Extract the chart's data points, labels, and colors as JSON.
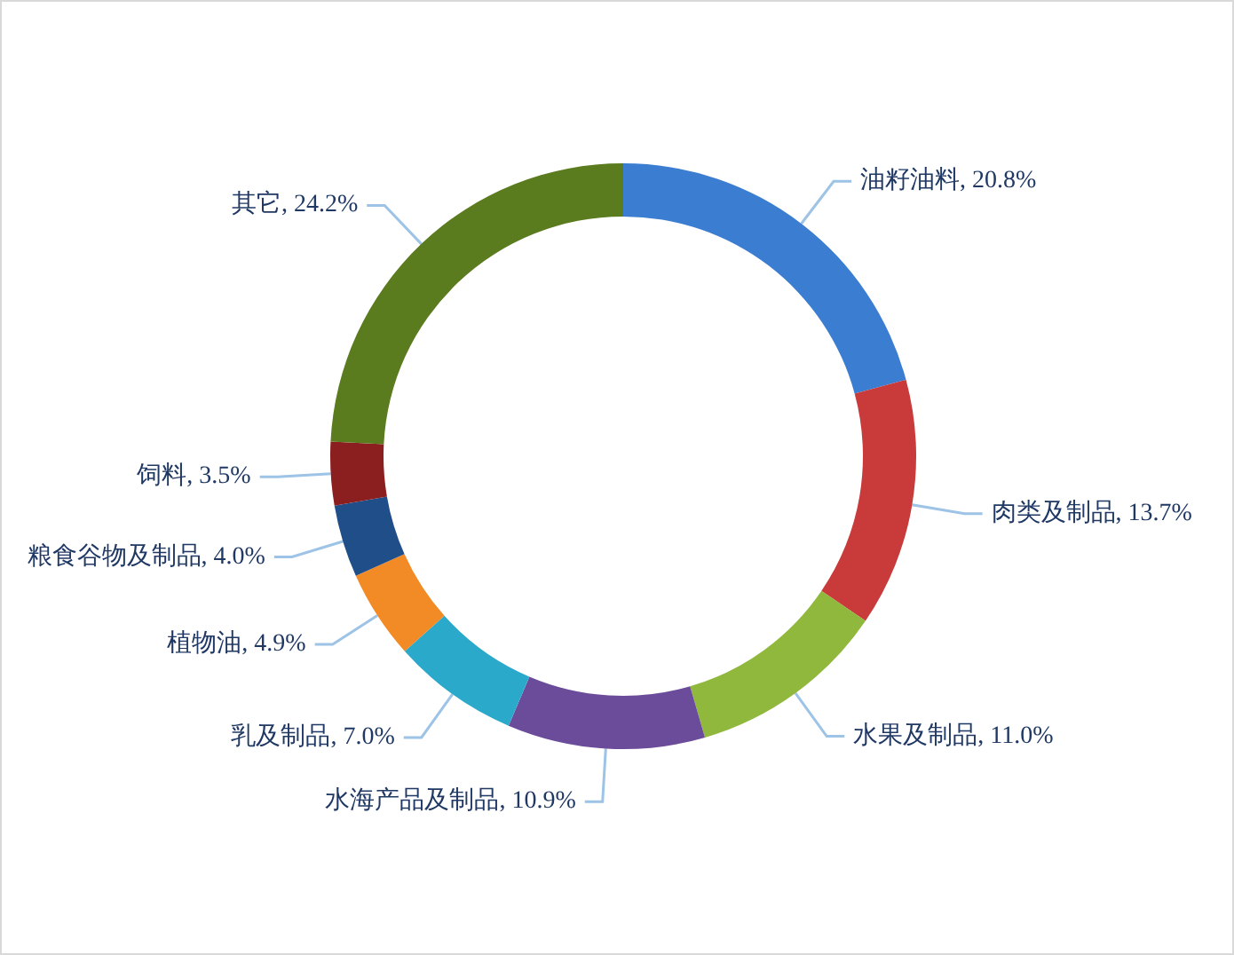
{
  "chart_data": {
    "type": "donut",
    "categories": [
      "油籽油料",
      "肉类及制品",
      "水果及制品",
      "水海产品及制品",
      "乳及制品",
      "植物油",
      "粮食谷物及制品",
      "饲料",
      "其它"
    ],
    "values": [
      20.8,
      13.7,
      11.0,
      10.9,
      7.0,
      4.9,
      4.0,
      3.5,
      24.2
    ],
    "value_labels": [
      "20.8%",
      "13.7%",
      "11.0%",
      "10.9%",
      "7.0%",
      "4.9%",
      "4.0%",
      "3.5%",
      "24.2%"
    ],
    "colors": [
      "#3b7dd0",
      "#c93b3b",
      "#8fb83c",
      "#6b4c9a",
      "#2ba9cb",
      "#f28b25",
      "#1f4e89",
      "#8b1e1e",
      "#5b7b1f"
    ],
    "legend": false
  }
}
